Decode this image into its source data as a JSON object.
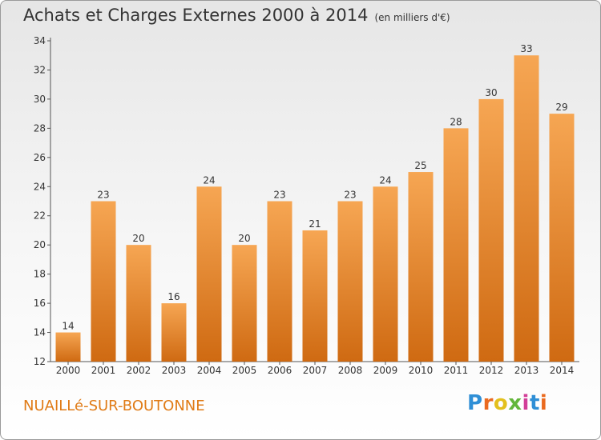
{
  "title": "Achats et Charges Externes 2000 à 2014",
  "unit": "(en milliers d'€)",
  "commune": "NUAILLé-SUR-BOUTONNE",
  "brand": "Proxiti",
  "colors": {
    "bar_light": "#f6a653",
    "bar_dark": "#cf6a12",
    "accent": "#e07b16",
    "brand": [
      "#2f8fd6",
      "#ea6a1f",
      "#e3c01d",
      "#62b63a",
      "#d23f98",
      "#2f8fd6",
      "#ea6a1f"
    ]
  },
  "chart_data": {
    "type": "bar",
    "categories": [
      "2000",
      "2001",
      "2002",
      "2003",
      "2004",
      "2005",
      "2006",
      "2007",
      "2008",
      "2009",
      "2010",
      "2011",
      "2012",
      "2013",
      "2014"
    ],
    "values": [
      14,
      23,
      20,
      16,
      24,
      20,
      23,
      21,
      23,
      24,
      25,
      28,
      30,
      33,
      29
    ],
    "ylim": [
      12,
      34
    ],
    "yticks": [
      12,
      14,
      16,
      18,
      20,
      22,
      24,
      26,
      28,
      30,
      32,
      34
    ],
    "grid": false
  }
}
